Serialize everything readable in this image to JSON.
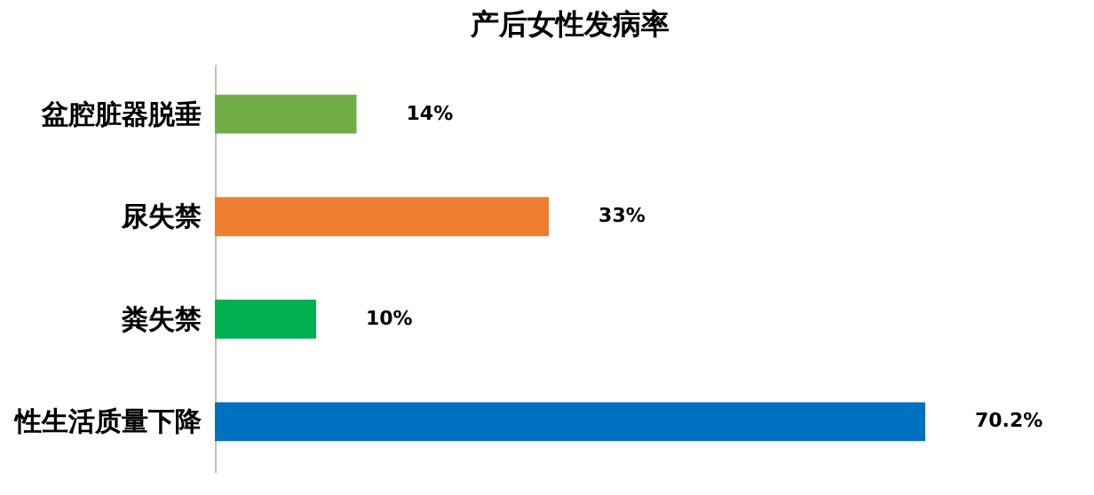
{
  "chart_data": {
    "type": "bar",
    "orientation": "horizontal",
    "title": "产后女性发病率",
    "categories": [
      "盆腔脏器脱垂",
      "尿失禁",
      "粪失禁",
      "性生活质量下降"
    ],
    "values": [
      14,
      33,
      10,
      70.2
    ],
    "colors": [
      "#70ad47",
      "#ed7d31",
      "#00b050",
      "#0070c0"
    ],
    "value_labels": [
      "14%",
      "33%",
      "10%",
      "70.2%"
    ]
  }
}
